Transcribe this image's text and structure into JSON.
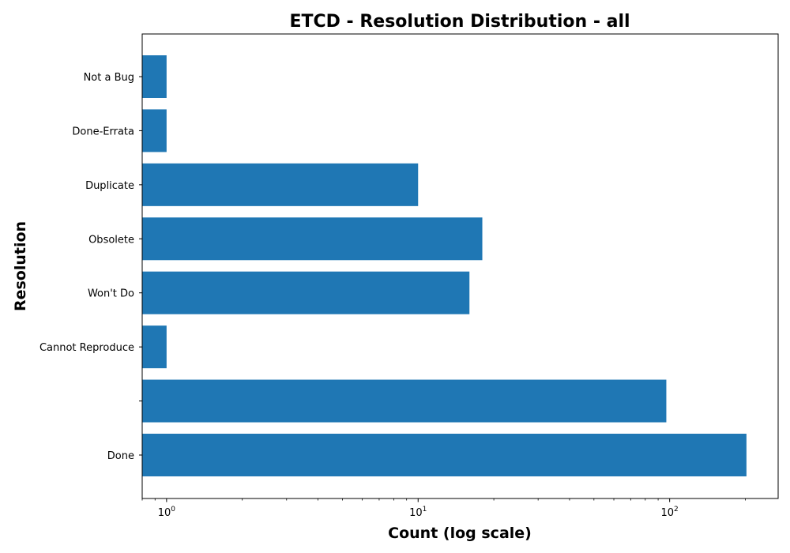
{
  "chart_data": {
    "type": "bar",
    "orientation": "horizontal",
    "title": "ETCD - Resolution Distribution - all",
    "xlabel": "Count (log scale)",
    "ylabel": "Resolution",
    "x_scale": "log",
    "xlim": [
      0.8,
      270
    ],
    "x_ticks": [
      {
        "value": 1,
        "base": "10",
        "exp": "0"
      },
      {
        "value": 10,
        "base": "10",
        "exp": "1"
      },
      {
        "value": 100,
        "base": "10",
        "exp": "2"
      }
    ],
    "categories": [
      "Done",
      "",
      "Cannot Reproduce",
      "Won't Do",
      "Obsolete",
      "Duplicate",
      "Done-Errata",
      "Not a Bug"
    ],
    "values": [
      202,
      97,
      1,
      16,
      18,
      10,
      1,
      1
    ],
    "bar_color": "#1f77b4",
    "grid": false,
    "legend": "none"
  }
}
